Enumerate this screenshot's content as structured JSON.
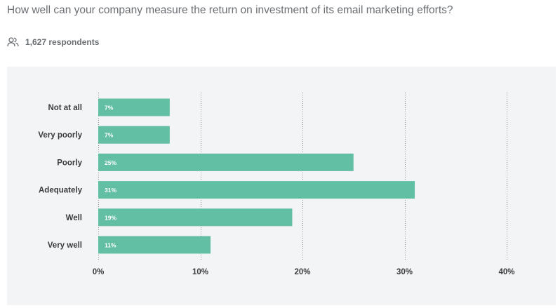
{
  "question": "How well can your company measure the return on investment of its email marketing efforts?",
  "respondents": {
    "icon": "people-icon",
    "text": "1,627 respondents"
  },
  "colors": {
    "bar": "#63bfa3",
    "bar_label": "#ffffff",
    "grid": "#8a8f94",
    "category_label": "#3a3d40",
    "tick_label": "#3a3d40"
  },
  "chart_data": {
    "type": "bar",
    "orientation": "horizontal",
    "categories": [
      "Not at all",
      "Very poorly",
      "Poorly",
      "Adequately",
      "Well",
      "Very well"
    ],
    "values": [
      7,
      7,
      25,
      31,
      19,
      11
    ],
    "data_labels": [
      "7%",
      "7%",
      "25%",
      "31%",
      "19%",
      "11%"
    ],
    "xlim": [
      0,
      40
    ],
    "xticks": [
      0,
      10,
      20,
      30,
      40
    ],
    "xtick_labels": [
      "0%",
      "10%",
      "20%",
      "30%",
      "40%"
    ],
    "grid": "vertical-dotted",
    "legend": "none"
  }
}
